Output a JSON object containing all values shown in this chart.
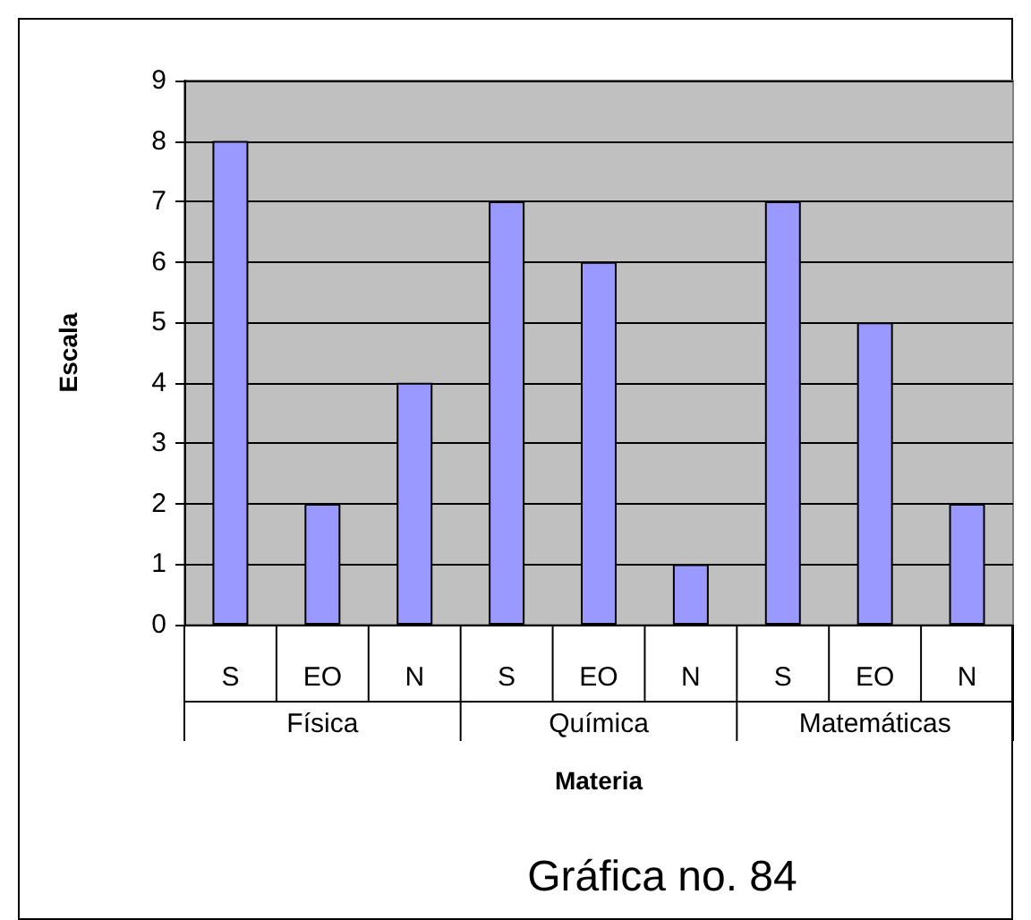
{
  "chart_data": {
    "type": "bar",
    "xlabel": "Materia",
    "ylabel": "Escala",
    "categories": [
      "S",
      "EO",
      "N",
      "S",
      "EO",
      "N",
      "S",
      "EO",
      "N"
    ],
    "values": [
      8,
      2,
      4,
      7,
      6,
      1,
      7,
      5,
      2
    ],
    "color": "#9999ff",
    "ylim": [
      0,
      9
    ],
    "yticks": [
      0,
      1,
      2,
      3,
      4,
      5,
      6,
      7,
      8,
      9
    ],
    "grid": "y",
    "annotations": [
      "Física",
      "Química",
      "Matemáticas",
      "Gráfica no. 84"
    ]
  }
}
